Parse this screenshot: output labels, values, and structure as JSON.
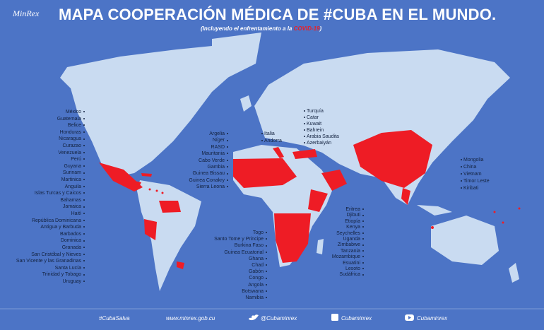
{
  "header": {
    "logo": "MinRex",
    "title": "MAPA COOPERACIÓN MÉDICA DE #CUBA EN EL MUNDO.",
    "subtitle_prefix": "(Incluyendo el enfrentamiento a la",
    "subtitle_highlight": "COVID-19",
    "subtitle_suffix": ")"
  },
  "lists": {
    "americas": [
      "México",
      "Guatemala",
      "Belice",
      "Honduras",
      "Nicaragua",
      "Curazao",
      "Venezuela",
      "Perú",
      "Guyana",
      "Surinam",
      "Martinica",
      "Anguila",
      "Islas Turcas y Caicos",
      "Bahamas",
      "Jamaica",
      "Haití",
      "República Dominicana",
      "Antigua y Barbuda",
      "Barbados",
      "Dominica",
      "Granada",
      "San Cristóbal y Nieves",
      "San Vicente y las Granadinas",
      "Santa Lucía",
      "Trinidad y Tobago",
      "Uruguay"
    ],
    "west_africa": [
      "Argelia",
      "Níger",
      "RASD",
      "Mauritania",
      "Cabo Verde",
      "Gambia",
      "Guinea Bissau",
      "Guinea Conakry",
      "Sierra Leona"
    ],
    "europe": [
      "Italia",
      "Andorra"
    ],
    "middle_east": [
      "Turquía",
      "Catar",
      "Kuwait",
      "Bahrein",
      "Arabia Saudita",
      "Azerbaiyán"
    ],
    "asia": [
      "Mongolia",
      "China",
      "Vietnam",
      "Timor Leste",
      "Kiribati"
    ],
    "central_africa": [
      "Togo",
      "Santo Tome y Principe",
      "Burkina Faso",
      "Guinea Ecuatorial",
      "Ghana",
      "Chad",
      "Gabón",
      "Congo",
      "Angola",
      "Botswana",
      "Namibia"
    ],
    "east_africa": [
      "Eritrea",
      "Djibuti",
      "Etiopía",
      "Kenya",
      "Seychelles",
      "Uganda",
      "Zimbabwe",
      "Tanzania",
      "Mozambique",
      "Esuatini",
      "Lesoto",
      "Sudáfrica"
    ]
  },
  "footer": {
    "hashtag": "#CubaSalva",
    "website": "www.minrex.gob.cu",
    "twitter": "@Cubaminrex",
    "facebook": "Cubaminrex",
    "youtube": "Cubaminrex"
  }
}
